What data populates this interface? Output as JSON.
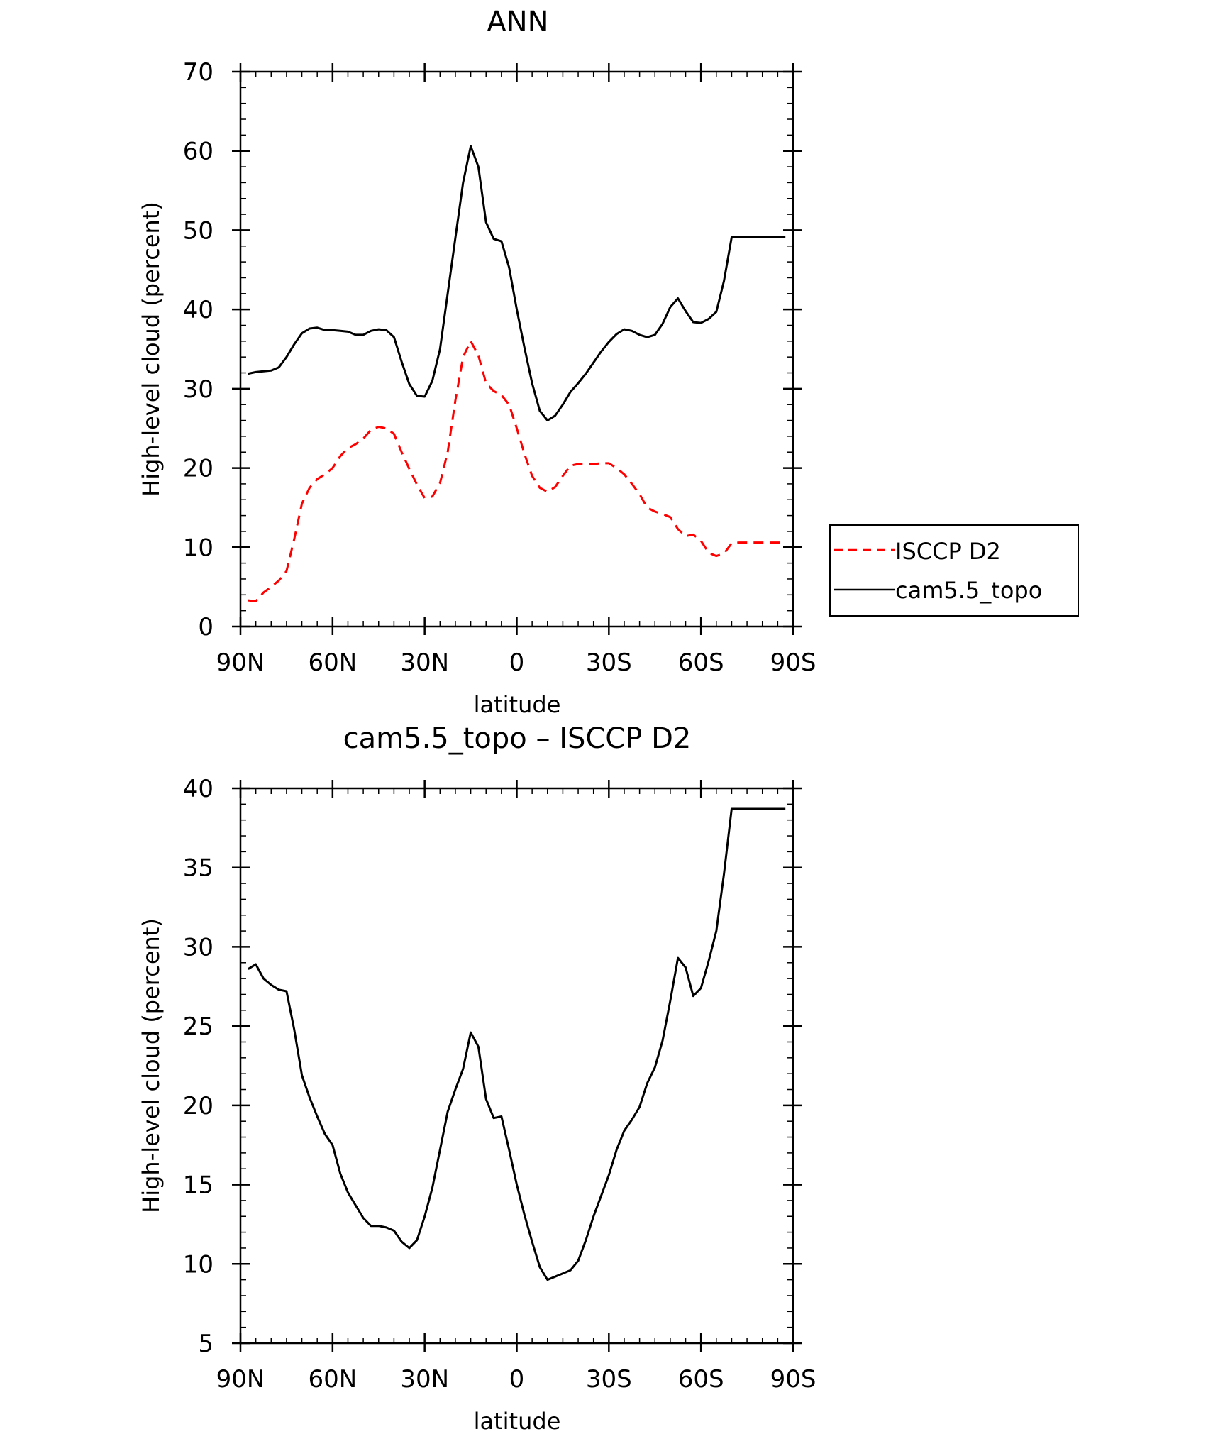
{
  "chart_data": [
    {
      "type": "line",
      "title": "ANN",
      "xlabel": "latitude",
      "ylabel": "High-level cloud (percent)",
      "xlim": [
        -90,
        90
      ],
      "ylim": [
        0,
        70
      ],
      "yticks": [
        0,
        10,
        20,
        30,
        40,
        50,
        60,
        70
      ],
      "xticks": [
        {
          "value": -90,
          "label": "90N"
        },
        {
          "value": -60,
          "label": "60N"
        },
        {
          "value": -30,
          "label": "30N"
        },
        {
          "value": 0,
          "label": "0"
        },
        {
          "value": 30,
          "label": "30S"
        },
        {
          "value": 60,
          "label": "60S"
        },
        {
          "value": 90,
          "label": "90S"
        }
      ],
      "legend": "outside right",
      "series": [
        {
          "name": "ISCCP D2",
          "color": "#ff0000",
          "dash": "dashed",
          "x": [
            -87.5,
            -85,
            -82.5,
            -80,
            -77.5,
            -75,
            -72.5,
            -70,
            -67.5,
            -65,
            -62.5,
            -60,
            -57.5,
            -55,
            -52.5,
            -50,
            -47.5,
            -45,
            -42.5,
            -40,
            -37.5,
            -35,
            -32.5,
            -30,
            -27.5,
            -25,
            -22.5,
            -20,
            -17.5,
            -15,
            -12.5,
            -10,
            -7.5,
            -5,
            -2.5,
            0,
            2.5,
            5,
            7.5,
            10,
            12.5,
            15,
            17.5,
            20,
            22.5,
            25,
            27.5,
            30,
            32.5,
            35,
            37.5,
            40,
            42.5,
            45,
            47.5,
            50,
            52.5,
            55,
            57.5,
            60,
            62.5,
            65,
            67.5,
            70,
            72.5,
            75,
            77.5,
            80,
            82.5,
            85,
            87.5
          ],
          "values": [
            3.3,
            3.2,
            4.3,
            5.0,
            5.8,
            7.0,
            11.0,
            15.5,
            17.5,
            18.6,
            19.2,
            20.0,
            21.5,
            22.5,
            23.0,
            23.7,
            24.8,
            25.2,
            25.0,
            24.3,
            22.0,
            19.9,
            17.9,
            16.2,
            16.4,
            18.1,
            22.0,
            28.5,
            34.0,
            36.0,
            34.2,
            30.7,
            29.7,
            29.2,
            28.0,
            25.0,
            21.8,
            19.0,
            17.5,
            17.0,
            17.6,
            19.0,
            20.3,
            20.5,
            20.5,
            20.5,
            20.6,
            20.6,
            20.0,
            19.2,
            18.0,
            16.7,
            15.0,
            14.5,
            14.2,
            13.8,
            12.3,
            11.4,
            11.6,
            10.8,
            9.3,
            8.9,
            9.2,
            10.5,
            10.6,
            10.6,
            10.6,
            10.6,
            10.6,
            10.6,
            10.6
          ]
        },
        {
          "name": "cam5.5_topo",
          "color": "#000000",
          "dash": "solid",
          "x": [
            -87.5,
            -85,
            -82.5,
            -80,
            -77.5,
            -75,
            -72.5,
            -70,
            -67.5,
            -65,
            -62.5,
            -60,
            -57.5,
            -55,
            -52.5,
            -50,
            -47.5,
            -45,
            -42.5,
            -40,
            -37.5,
            -35,
            -32.5,
            -30,
            -27.5,
            -25,
            -22.5,
            -20,
            -17.5,
            -15,
            -12.5,
            -10,
            -7.5,
            -5,
            -2.5,
            0,
            2.5,
            5,
            7.5,
            10,
            12.5,
            15,
            17.5,
            20,
            22.5,
            25,
            27.5,
            30,
            32.5,
            35,
            37.5,
            40,
            42.5,
            45,
            47.5,
            50,
            52.5,
            55,
            57.5,
            60,
            62.5,
            65,
            67.5,
            70,
            72.5,
            75,
            77.5,
            80,
            82.5,
            85,
            87.5
          ],
          "values": [
            31.9,
            32.1,
            32.2,
            32.3,
            32.7,
            34.0,
            35.6,
            37.0,
            37.6,
            37.7,
            37.4,
            37.4,
            37.3,
            37.2,
            36.8,
            36.8,
            37.3,
            37.5,
            37.4,
            36.5,
            33.4,
            30.6,
            29.1,
            29.0,
            31.0,
            35.0,
            42.0,
            49.0,
            56.0,
            60.6,
            58.0,
            51.0,
            48.9,
            48.6,
            45.3,
            40.0,
            35.2,
            30.7,
            27.2,
            26.0,
            26.6,
            28.0,
            29.6,
            30.7,
            31.9,
            33.3,
            34.7,
            35.9,
            36.9,
            37.5,
            37.3,
            36.8,
            36.5,
            36.8,
            38.2,
            40.3,
            41.4,
            39.8,
            38.4,
            38.3,
            38.8,
            39.7,
            43.6,
            49.1,
            49.1,
            49.1,
            49.1,
            49.1,
            49.1,
            49.1,
            49.1
          ]
        }
      ]
    },
    {
      "type": "line",
      "title": "cam5.5_topo – ISCCP D2",
      "xlabel": "latitude",
      "ylabel": "High-level cloud (percent)",
      "xlim": [
        -90,
        90
      ],
      "ylim": [
        5,
        40
      ],
      "yticks": [
        5,
        10,
        15,
        20,
        25,
        30,
        35,
        40
      ],
      "xticks": [
        {
          "value": -90,
          "label": "90N"
        },
        {
          "value": -60,
          "label": "60N"
        },
        {
          "value": -30,
          "label": "30N"
        },
        {
          "value": 0,
          "label": "0"
        },
        {
          "value": 30,
          "label": "30S"
        },
        {
          "value": 60,
          "label": "60S"
        },
        {
          "value": 90,
          "label": "90S"
        }
      ],
      "series": [
        {
          "name": "cam5.5_topo – ISCCP D2",
          "color": "#000000",
          "dash": "solid",
          "x": [
            -87.5,
            -85,
            -82.5,
            -80,
            -77.5,
            -75,
            -72.5,
            -70,
            -67.5,
            -65,
            -62.5,
            -60,
            -57.5,
            -55,
            -52.5,
            -50,
            -47.5,
            -45,
            -42.5,
            -40,
            -37.5,
            -35,
            -32.5,
            -30,
            -27.5,
            -25,
            -22.5,
            -20,
            -17.5,
            -15,
            -12.5,
            -10,
            -7.5,
            -5,
            -2.5,
            0,
            2.5,
            5,
            7.5,
            10,
            12.5,
            15,
            17.5,
            20,
            22.5,
            25,
            27.5,
            30,
            32.5,
            35,
            37.5,
            40,
            42.5,
            45,
            47.5,
            50,
            52.5,
            55,
            57.5,
            60,
            62.5,
            65,
            67.5,
            70,
            72.5,
            75,
            77.5,
            80,
            82.5,
            85,
            87.5
          ],
          "values": [
            28.6,
            28.9,
            28.0,
            27.6,
            27.3,
            27.2,
            24.8,
            21.9,
            20.5,
            19.3,
            18.2,
            17.5,
            15.7,
            14.5,
            13.7,
            12.9,
            12.4,
            12.4,
            12.3,
            12.1,
            11.4,
            11.0,
            11.5,
            13.0,
            14.8,
            17.2,
            19.6,
            21.0,
            22.3,
            24.6,
            23.7,
            20.4,
            19.2,
            19.3,
            17.2,
            15.0,
            13.1,
            11.4,
            9.8,
            9.0,
            9.2,
            9.4,
            9.6,
            10.2,
            11.5,
            13.0,
            14.3,
            15.6,
            17.2,
            18.4,
            19.1,
            19.9,
            21.4,
            22.4,
            24.1,
            26.6,
            29.3,
            28.7,
            26.9,
            27.4,
            29.1,
            31.0,
            34.6,
            38.7,
            38.7,
            38.7,
            38.7,
            38.7,
            38.7,
            38.7,
            38.7
          ]
        }
      ]
    }
  ]
}
